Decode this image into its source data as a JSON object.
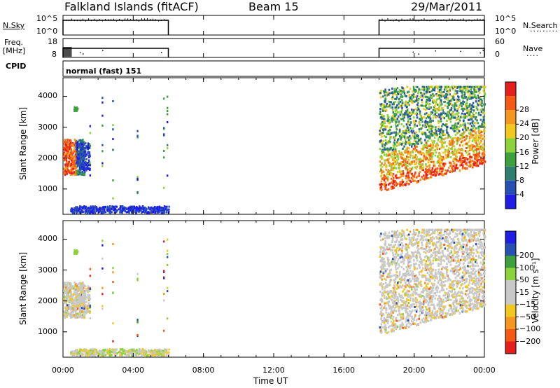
{
  "header": {
    "station": "Falkland Islands (fitACF)",
    "beam": "Beam 15",
    "date": "29/Mar/2011"
  },
  "panels": {
    "nsky": {
      "left_label": "N.Sky",
      "ticks": [
        "10^5",
        "10^0"
      ],
      "right_label": "N.Search",
      "right_ticks": [
        "10^5",
        "10^0"
      ]
    },
    "freq": {
      "left_label_top": "Freq.",
      "left_label_bottom": "[MHz]",
      "ticks": [
        "18",
        "8"
      ],
      "right_label": "Nave",
      "right_ticks": [
        "60",
        "0"
      ]
    },
    "cpid": {
      "label": "CPID",
      "value": "normal (fast) 151"
    }
  },
  "colors": {
    "power": [
      "#1e1ee6",
      "#2850b4",
      "#2e7d6e",
      "#3ca03c",
      "#8cd23c",
      "#f0c81e",
      "#f5961e",
      "#f55a14",
      "#e61e1e"
    ],
    "velocity": [
      "#e61e1e",
      "#f55a14",
      "#f5961e",
      "#f0c81e",
      "#c8c8c8",
      "#c8c8c8",
      "#8cd23c",
      "#3ca03c",
      "#2850b4",
      "#1e1ee6"
    ],
    "trace": "#000000"
  },
  "chart_data": [
    {
      "type": "heatmap",
      "panel": "power",
      "ylabel": "Slant Range [km]",
      "xlabel": "",
      "x_ticks": [
        "00:00",
        "04:00",
        "08:00",
        "12:00",
        "16:00",
        "20:00",
        "00:00"
      ],
      "x_range_hours": [
        0,
        24
      ],
      "ylim": [
        180,
        4600
      ],
      "y_ticks": [
        1000,
        2000,
        3000,
        4000
      ],
      "colorbar_label": "Power [dB]",
      "colorbar_ticks": [
        "4",
        "8",
        "12",
        "16",
        "20",
        "24",
        "28"
      ],
      "regions": [
        {
          "t0": 0.0,
          "t1": 1.1,
          "r0": 1400,
          "r1": 2600,
          "level": "high"
        },
        {
          "t0": 0.6,
          "t1": 1.4,
          "r0": 1600,
          "r1": 2600,
          "level": "low"
        },
        {
          "t0": 0.3,
          "t1": 6.0,
          "r0": 200,
          "r1": 450,
          "level": "low"
        },
        {
          "t0": 18.0,
          "t1": 24.0,
          "r0": 800,
          "r1": 3400,
          "level": "mixed"
        },
        {
          "t0": 18.0,
          "t1": 24.0,
          "r0": 850,
          "r1": 2100,
          "level": "high"
        }
      ]
    },
    {
      "type": "heatmap",
      "panel": "velocity",
      "ylabel": "Slant Range [km]",
      "xlabel": "Time UT",
      "x_ticks": [
        "00:00",
        "04:00",
        "08:00",
        "12:00",
        "16:00",
        "20:00",
        "00:00"
      ],
      "x_range_hours": [
        0,
        24
      ],
      "ylim": [
        180,
        4600
      ],
      "y_ticks": [
        1000,
        2000,
        3000,
        4000
      ],
      "colorbar_label": "Velocity [m s⁻¹]",
      "colorbar_ticks": [
        "200",
        "100",
        "50",
        "15",
        "−15",
        "−50",
        "−100",
        "−200"
      ]
    }
  ]
}
